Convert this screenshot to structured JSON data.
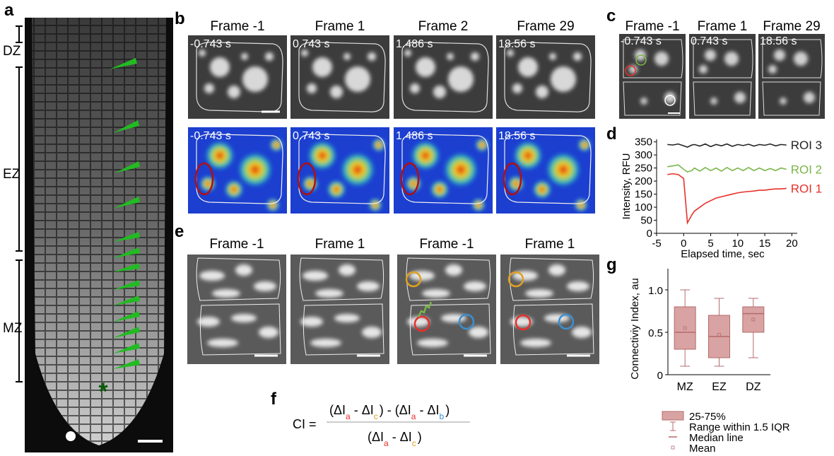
{
  "panel_labels": [
    "a",
    "b",
    "c",
    "d",
    "e",
    "f",
    "g"
  ],
  "panel_a": {
    "zones": [
      "DZ",
      "EZ",
      "MZ"
    ],
    "marker": "*"
  },
  "panel_b": {
    "frames": [
      "Frame -1",
      "Frame 1",
      "Frame 2",
      "Frame 29"
    ],
    "times": [
      "-0.743 s",
      "0.743 s",
      "1.486 s",
      "18.56 s"
    ]
  },
  "panel_c": {
    "frames": [
      "Frame -1",
      "Frame 1",
      "Frame 29"
    ],
    "times": [
      "-0.743 s",
      "0.743 s",
      "18.56 s"
    ]
  },
  "panel_e": {
    "frames": [
      "Frame -1",
      "Frame 1",
      "Frame -1",
      "Frame 1"
    ]
  },
  "formula": {
    "lhs": "CI =",
    "open": "(",
    "close": ")",
    "minus": "-",
    "delta": "ΔI",
    "subscripts": [
      {
        "text": "a",
        "color": "#e8302a"
      },
      {
        "text": "c",
        "color": "#e0a020"
      },
      {
        "text": "b",
        "color": "#3b8fd0"
      }
    ]
  },
  "chart_data": [
    {
      "type": "line",
      "xlabel": "Elapsed time, sec",
      "ylabel": "Intensity, RFU",
      "x": [
        -3,
        -2,
        -1,
        0,
        0.7,
        1.5,
        2,
        3,
        4,
        5,
        6,
        7,
        8,
        9,
        10,
        11,
        12,
        13,
        14,
        15,
        16,
        17,
        18,
        19
      ],
      "series": [
        {
          "name": "ROI 3",
          "color": "#222222",
          "values": [
            340,
            338,
            342,
            335,
            330,
            338,
            340,
            334,
            342,
            332,
            340,
            335,
            342,
            333,
            340,
            336,
            341,
            334,
            340,
            337,
            342,
            335,
            340,
            338
          ]
        },
        {
          "name": "ROI 2",
          "color": "#7ab648",
          "values": [
            255,
            258,
            262,
            245,
            235,
            240,
            250,
            238,
            252,
            240,
            250,
            238,
            252,
            240,
            250,
            240,
            252,
            240,
            250,
            240,
            248,
            240,
            250,
            245
          ]
        },
        {
          "name": "ROI 1",
          "color": "#e8302a",
          "values": [
            225,
            228,
            225,
            210,
            40,
            70,
            85,
            100,
            115,
            125,
            135,
            140,
            145,
            150,
            155,
            158,
            160,
            162,
            165,
            165,
            168,
            170,
            170,
            172
          ]
        }
      ],
      "xlim": [
        -5,
        21
      ],
      "xticks": [
        -5,
        0,
        5,
        10,
        15,
        20
      ],
      "ylim": [
        0,
        360
      ],
      "yticks": [
        0,
        50,
        100,
        150,
        200,
        250,
        300,
        350
      ]
    },
    {
      "type": "box",
      "ylabel": "Connectiviy Index, au",
      "categories": [
        "MZ",
        "EZ",
        "DZ"
      ],
      "color": "#d9a3a3",
      "edge_color": "#b56b6b",
      "boxes": [
        {
          "whisker_low": 0.1,
          "q1": 0.3,
          "median": 0.5,
          "q3": 0.8,
          "whisker_high": 1.0,
          "mean": 0.55
        },
        {
          "whisker_low": 0.1,
          "q1": 0.2,
          "median": 0.45,
          "q3": 0.7,
          "whisker_high": 0.9,
          "mean": 0.47
        },
        {
          "whisker_low": 0.2,
          "q1": 0.5,
          "median": 0.72,
          "q3": 0.8,
          "whisker_high": 0.9,
          "mean": 0.65
        }
      ],
      "ylim": [
        0,
        1.25
      ],
      "yticks": [
        0,
        0.5,
        {
          "value": 1,
          "label": "1.0"
        }
      ],
      "legend": [
        "25-75%",
        "Range within 1.5 IQR",
        "Median line",
        "Mean"
      ]
    }
  ]
}
